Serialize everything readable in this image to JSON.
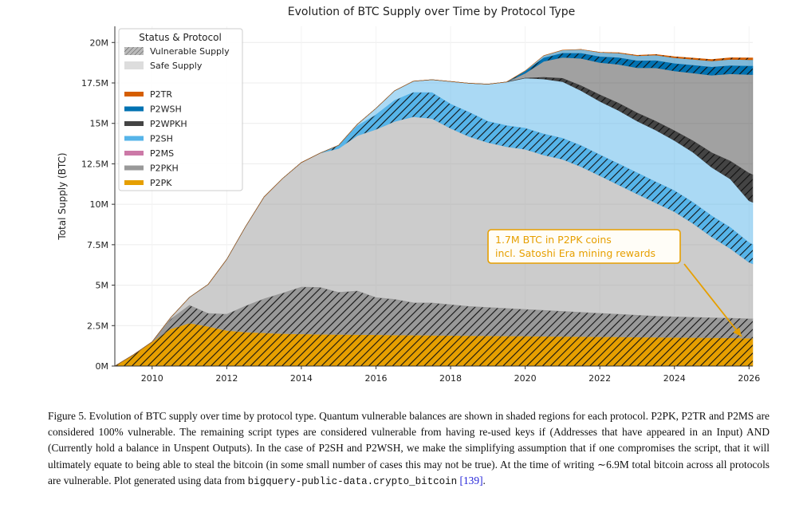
{
  "chart_data": {
    "type": "area",
    "title": "Evolution of BTC Supply over Time by Protocol Type",
    "xlabel": "",
    "ylabel": "Total Supply (BTC)",
    "xlim": [
      2009,
      2026.1
    ],
    "ylim": [
      0,
      21000000
    ],
    "x_ticks": [
      2010,
      2012,
      2014,
      2016,
      2018,
      2020,
      2022,
      2024,
      2026
    ],
    "x_tick_labels": [
      "2010",
      "2012",
      "2014",
      "2016",
      "2018",
      "2020",
      "2022",
      "2024",
      "2026"
    ],
    "y_ticks": [
      0,
      2500000,
      5000000,
      7500000,
      10000000,
      12500000,
      15000000,
      17500000,
      20000000
    ],
    "y_tick_labels": [
      "0M",
      "2.5M",
      "5M",
      "7.5M",
      "10M",
      "12.5M",
      "15M",
      "17.5M",
      "20M"
    ],
    "grid": true,
    "legend": {
      "title": "Status & Protocol",
      "placement": "top-left",
      "status_entries": [
        "Vulnerable Supply",
        "Safe Supply"
      ],
      "protocol_entries": [
        "P2TR",
        "P2WSH",
        "P2WPKH",
        "P2SH",
        "P2MS",
        "P2PKH",
        "P2PK"
      ]
    },
    "x": [
      2009,
      2009.5,
      2010,
      2010.5,
      2011,
      2011.5,
      2012,
      2012.5,
      2013,
      2013.5,
      2014,
      2014.5,
      2015,
      2015.5,
      2016,
      2016.5,
      2017,
      2017.5,
      2018,
      2018.5,
      2019,
      2019.5,
      2020,
      2020.5,
      2021,
      2021.5,
      2022,
      2022.5,
      2023,
      2023.5,
      2024,
      2024.5,
      2025,
      2025.5,
      2026,
      2026.1
    ],
    "series": [
      {
        "name": "P2PK",
        "color": "#e69f00",
        "vulnerable": [
          0,
          700000,
          1500000,
          2300000,
          2650000,
          2450000,
          2200000,
          2100000,
          2050000,
          2000000,
          1980000,
          1960000,
          1950000,
          1940000,
          1930000,
          1920000,
          1910000,
          1900000,
          1890000,
          1880000,
          1870000,
          1860000,
          1850000,
          1840000,
          1830000,
          1820000,
          1810000,
          1800000,
          1790000,
          1780000,
          1770000,
          1760000,
          1750000,
          1740000,
          1720000,
          1720000
        ],
        "safe": [
          0,
          0,
          0,
          0,
          0,
          0,
          0,
          0,
          0,
          0,
          0,
          0,
          0,
          0,
          0,
          0,
          0,
          0,
          0,
          0,
          0,
          0,
          0,
          0,
          0,
          0,
          0,
          0,
          0,
          0,
          0,
          0,
          0,
          0,
          0,
          0
        ]
      },
      {
        "name": "P2PKH",
        "color": "#999999",
        "vulnerable": [
          0,
          0,
          0,
          600000,
          1100000,
          800000,
          1000000,
          1600000,
          2100000,
          2500000,
          2900000,
          2900000,
          2600000,
          2700000,
          2300000,
          2200000,
          2000000,
          2000000,
          1900000,
          1800000,
          1750000,
          1700000,
          1650000,
          1600000,
          1550000,
          1500000,
          1450000,
          1400000,
          1350000,
          1300000,
          1270000,
          1250000,
          1230000,
          1220000,
          1200000,
          1200000
        ],
        "safe": [
          0,
          0,
          0,
          100000,
          500000,
          1800000,
          3400000,
          4900000,
          6300000,
          7100000,
          7700000,
          8300000,
          8900000,
          9600000,
          10400000,
          11000000,
          11500000,
          11400000,
          10900000,
          10500000,
          10200000,
          10000000,
          9900000,
          9600000,
          9400000,
          9000000,
          8500000,
          8000000,
          7500000,
          7000000,
          6500000,
          5800000,
          5000000,
          4300000,
          3500000,
          3400000
        ]
      },
      {
        "name": "P2MS",
        "color": "#cc79a7",
        "vulnerable": [
          0,
          0,
          0,
          0,
          0,
          0,
          0,
          0,
          0,
          0,
          0,
          0,
          0,
          0,
          0,
          0,
          0,
          0,
          0,
          0,
          0,
          0,
          0,
          0,
          0,
          0,
          0,
          0,
          0,
          0,
          0,
          0,
          0,
          0,
          0,
          0
        ],
        "safe": [
          0,
          0,
          0,
          0,
          0,
          0,
          0,
          0,
          0,
          0,
          0,
          0,
          0,
          0,
          0,
          0,
          0,
          0,
          0,
          0,
          0,
          0,
          0,
          0,
          0,
          0,
          0,
          0,
          0,
          0,
          0,
          0,
          0,
          0,
          0,
          0
        ]
      },
      {
        "name": "P2SH",
        "color": "#56b4e9",
        "vulnerable": [
          0,
          0,
          0,
          0,
          0,
          0,
          0,
          0,
          0,
          0,
          0,
          0,
          200000,
          600000,
          900000,
          1300000,
          1500000,
          1600000,
          1500000,
          1500000,
          1300000,
          1300000,
          1300000,
          1300000,
          1300000,
          1300000,
          1300000,
          1300000,
          1300000,
          1300000,
          1300000,
          1300000,
          1300000,
          1300000,
          1200000,
          1200000
        ],
        "safe": [
          0,
          0,
          0,
          0,
          0,
          0,
          0,
          0,
          0,
          0,
          0,
          0,
          0,
          100000,
          400000,
          600000,
          700000,
          800000,
          1400000,
          1800000,
          2300000,
          2700000,
          3100000,
          3400000,
          3500000,
          3400000,
          3300000,
          3300000,
          3200000,
          3200000,
          3100000,
          3100000,
          3000000,
          3000000,
          2600000,
          2600000
        ]
      },
      {
        "name": "P2WPKH",
        "color": "#444444",
        "vulnerable": [
          0,
          0,
          0,
          0,
          0,
          0,
          0,
          0,
          0,
          0,
          0,
          0,
          0,
          0,
          0,
          0,
          0,
          0,
          0,
          0,
          0,
          0,
          0,
          100000,
          200000,
          300000,
          400000,
          450000,
          500000,
          550000,
          600000,
          700000,
          900000,
          1100000,
          1700000,
          1700000
        ],
        "safe": [
          0,
          0,
          0,
          0,
          0,
          0,
          0,
          0,
          0,
          0,
          0,
          0,
          0,
          0,
          0,
          0,
          0,
          0,
          0,
          0,
          0,
          0,
          300000,
          1000000,
          1300000,
          1700000,
          2000000,
          2400000,
          2800000,
          3300000,
          3700000,
          4200000,
          4800000,
          5400000,
          6100000,
          6200000
        ]
      },
      {
        "name": "P2WSH",
        "color": "#0072b2",
        "vulnerable": [
          0,
          0,
          0,
          0,
          0,
          0,
          0,
          0,
          0,
          0,
          0,
          0,
          0,
          0,
          0,
          0,
          0,
          0,
          0,
          0,
          0,
          0,
          100000,
          200000,
          250000,
          300000,
          350000,
          400000,
          420000,
          440000,
          450000,
          470000,
          490000,
          500000,
          510000,
          510000
        ],
        "safe": [
          0,
          0,
          0,
          0,
          0,
          0,
          0,
          0,
          0,
          0,
          0,
          0,
          0,
          0,
          0,
          0,
          0,
          0,
          0,
          0,
          0,
          0,
          50000,
          150000,
          200000,
          250000,
          280000,
          300000,
          320000,
          350000,
          370000,
          380000,
          390000,
          400000,
          400000,
          400000
        ]
      },
      {
        "name": "P2TR",
        "color": "#d55e00",
        "vulnerable": [
          0,
          0,
          0,
          0,
          0,
          0,
          0,
          0,
          0,
          0,
          0,
          0,
          0,
          0,
          0,
          0,
          0,
          0,
          0,
          0,
          0,
          0,
          0,
          0,
          0,
          0,
          10000,
          20000,
          30000,
          40000,
          60000,
          80000,
          90000,
          100000,
          120000,
          120000
        ],
        "safe": [
          0,
          0,
          0,
          0,
          0,
          0,
          0,
          0,
          0,
          0,
          0,
          0,
          0,
          0,
          0,
          0,
          0,
          0,
          0,
          0,
          0,
          0,
          0,
          0,
          0,
          0,
          0,
          0,
          0,
          0,
          0,
          0,
          0,
          0,
          0,
          0
        ]
      }
    ],
    "annotations": [
      {
        "text_lines": [
          "1.7M BTC in P2PK coins",
          "incl. Satoshi Era mining rewards"
        ],
        "color": "#e69f00",
        "arrow_to": {
          "x": 2025.8,
          "y": 1720000
        }
      }
    ]
  },
  "caption": {
    "part1": "Figure 5. Evolution of BTC supply over time by protocol type. Quantum vulnerable balances are shown in shaded regions for each protocol. P2PK, P2TR and P2MS are considered 100% vulnerable. The remaining script types are considered vulnerable from having re-used keys if (Addresses that have appeared in an Input) AND (Currently hold a balance in Unspent Outputs). In the case of P2SH and P2WSH, we make the simplifying assumption that if one compromises the script, that it will ultimately equate to being able to steal the bitcoin (in some small number of cases this may not be true). At the time of writing ∼6.9M total bitcoin across all protocols are vulnerable. Plot generated using data from ",
    "code": "bigquery-public-data.crypto_bitcoin",
    "space": " ",
    "cite": "[139]",
    "end": "."
  }
}
